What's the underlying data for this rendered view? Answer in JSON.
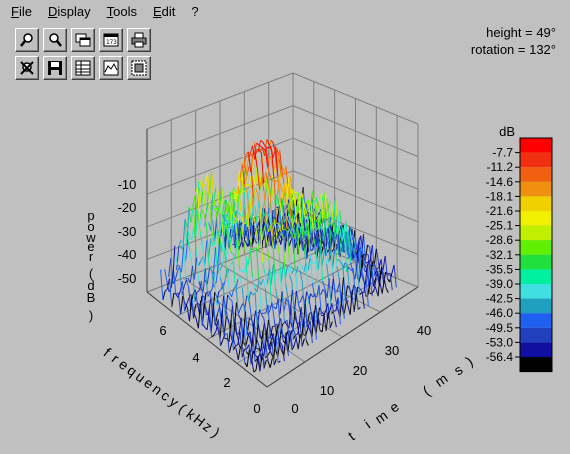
{
  "menu": {
    "file": {
      "ul": "F",
      "rest": "ile"
    },
    "display": {
      "ul": "D",
      "rest": "isplay"
    },
    "tools": {
      "ul": "T",
      "rest": "ools"
    },
    "edit": {
      "ul": "E",
      "rest": "dit"
    },
    "help": "?"
  },
  "toolbar": {
    "row1": [
      "zoom-in-icon",
      "zoom-out-icon",
      "copy-window-icon",
      "counter-icon",
      "print-icon"
    ],
    "row2": [
      "zoom-off-icon",
      "save-icon",
      "table-icon",
      "graph-icon",
      "export-icon"
    ]
  },
  "readout": {
    "height": "height =  49°",
    "rotation": "rotation = 132°"
  },
  "plot": {
    "power_axis": {
      "label": [
        "p",
        "o",
        "w",
        "e",
        "r",
        "(",
        "d",
        "B",
        ")"
      ],
      "ticks": [
        "-10",
        "-20",
        "-30",
        "-40",
        "-50"
      ]
    },
    "frequency_axis": {
      "label": [
        "f",
        "r",
        "e",
        "q",
        "u",
        "e",
        "n",
        "c",
        "y",
        "(",
        "k",
        "H",
        "z",
        ")"
      ],
      "ticks": [
        "6",
        "4",
        "2",
        "0"
      ]
    },
    "time_axis": {
      "label": [
        "t",
        "i",
        "m",
        "e",
        "(",
        "m",
        "s",
        ")"
      ],
      "ticks": [
        "0",
        "10",
        "20",
        "30",
        "40"
      ]
    }
  },
  "legend": {
    "title": "dB",
    "labels": [
      "-7.7",
      "-11.2",
      "-14.6",
      "-18.1",
      "-21.6",
      "-25.1",
      "-28.6",
      "-32.1",
      "-35.5",
      "-39.0",
      "-42.5",
      "-46.0",
      "-49.5",
      "-53.0",
      "-56.4"
    ],
    "colors": [
      "#ff0000",
      "#f03010",
      "#f06010",
      "#f09010",
      "#f0d000",
      "#f0f000",
      "#c0f000",
      "#60f000",
      "#20e040",
      "#00f0a0",
      "#40e0e0",
      "#20a0c0",
      "#2060f0",
      "#2040c0",
      "#1010a0",
      "#000000"
    ]
  }
}
